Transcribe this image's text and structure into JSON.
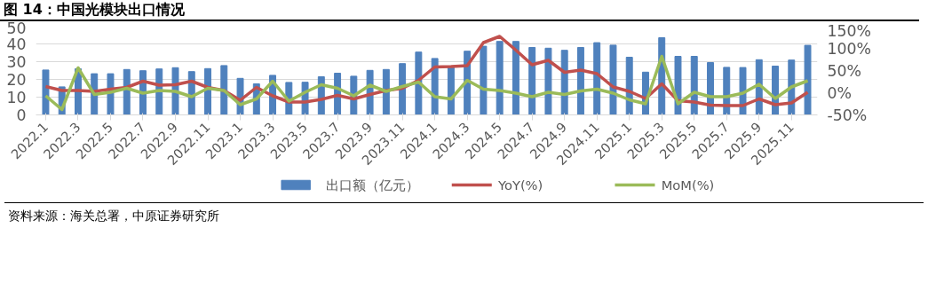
{
  "chart_data": {
    "type": "bar",
    "title": "图 14：中国光模块出口情况",
    "categories": [
      "2022.1",
      null,
      "2022.3",
      null,
      "2022.5",
      null,
      "2022.7",
      null,
      "2022.9",
      null,
      "2022.11",
      null,
      "2023.1",
      null,
      "2023.3",
      null,
      "2023.5",
      null,
      "2023.7",
      null,
      "2023.9",
      null,
      "2023.11",
      null,
      "2024.1",
      null,
      "2024.3",
      null,
      "2024.5",
      null,
      "2024.7",
      null,
      "2024.9",
      null,
      "2024.11",
      null,
      "2025.1",
      null,
      "2025.3",
      null,
      "2025.5",
      null,
      "2025.7",
      null,
      "2025.9",
      null,
      "2025.11",
      null
    ],
    "series": [
      {
        "name": "出口额（亿元）",
        "color": "#4f81bd",
        "values": [
          25.3,
          15.8,
          26,
          23.2,
          23.2,
          25.6,
          24.9,
          25.9,
          26.6,
          24.4,
          26.1,
          27.8,
          20.6,
          17.5,
          22.3,
          18.3,
          18.4,
          21.5,
          23.5,
          21.8,
          25.1,
          25.6,
          28.9,
          35.4,
          31.8,
          26.8,
          35.9,
          38.7,
          41.4,
          41.4,
          38,
          37.6,
          36.4,
          38,
          40.7,
          39.3,
          32.5,
          24.1,
          43.5,
          33,
          33,
          29.5,
          26.8,
          26.7,
          31.1,
          27.5,
          30.9,
          39.2
        ]
      },
      {
        "name": "YoY(%)",
        "type": "line",
        "axis": "y2",
        "color": "#c0504d",
        "values": [
          14,
          5,
          5,
          3,
          8,
          12,
          26,
          17,
          18,
          26,
          12,
          5,
          -17,
          12,
          -7,
          -21,
          -21,
          -15,
          -6,
          -14,
          -4,
          5,
          10,
          28,
          58,
          59,
          61,
          113,
          127,
          96,
          63,
          73,
          46,
          51,
          43,
          13,
          3,
          -13,
          20,
          -18,
          -21,
          -28,
          -29,
          -29,
          -14,
          -27,
          -23,
          1
        ]
      },
      {
        "name": "MoM(%)",
        "type": "line",
        "axis": "y2",
        "color": "#9bbb59",
        "values": [
          -7,
          -38,
          56,
          -4,
          1,
          10,
          -1,
          5,
          3,
          -9,
          10,
          5,
          -27,
          -14,
          26,
          -19,
          1,
          18,
          10,
          -7,
          17,
          3,
          14,
          24,
          -9,
          -14,
          28,
          8,
          5,
          -1,
          -9,
          1,
          -4,
          4,
          8,
          -1,
          -16,
          -25,
          82,
          -25,
          1,
          -9,
          -9,
          -1,
          19,
          -13,
          13,
          27
        ]
      }
    ],
    "ylim": [
      0,
      50
    ],
    "yticks": [
      0,
      10,
      20,
      30,
      40,
      50
    ],
    "y2lim": [
      -50,
      150
    ],
    "y2ticks": [
      {
        "value": -50,
        "label": "-50%"
      },
      {
        "value": 0,
        "label": "0%"
      },
      {
        "value": 50,
        "label": "50%"
      },
      {
        "value": 100,
        "label": "100%"
      },
      {
        "value": 150,
        "label": "150%"
      }
    ],
    "grid": "y",
    "legend": "bottom",
    "annotations": [
      "资料来源：海关总署，中原证券研究所"
    ]
  }
}
